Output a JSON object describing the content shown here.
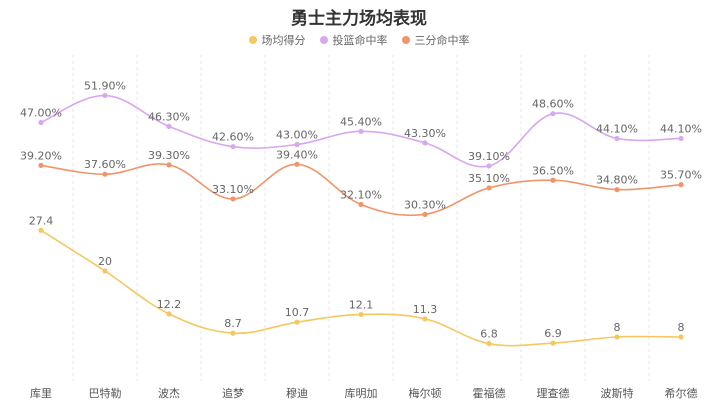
{
  "chart_data": {
    "type": "line",
    "title": "勇士主力场均表现",
    "xlabel": "",
    "ylabel": "",
    "ylim": [
      0,
      60
    ],
    "grid": "vertical-dashed",
    "legend_position": "top-center",
    "categories": [
      "库里",
      "巴特勒",
      "波杰",
      "追梦",
      "穆迪",
      "库明加",
      "梅尔顿",
      "霍福德",
      "理查德",
      "波斯特",
      "希尔德"
    ],
    "series": [
      {
        "name": "场均得分",
        "color": "#f5c85f",
        "values": [
          27.4,
          20,
          12.2,
          8.7,
          10.7,
          12.1,
          11.3,
          6.8,
          6.9,
          8,
          8
        ],
        "labels": [
          "27.4",
          "20",
          "12.2",
          "8.7",
          "10.7",
          "12.1",
          "11.3",
          "6.8",
          "6.9",
          "8",
          "8"
        ]
      },
      {
        "name": "投篮命中率",
        "color": "#d9a6f0",
        "values": [
          47.0,
          51.9,
          46.3,
          42.6,
          43.0,
          45.4,
          43.3,
          39.1,
          48.6,
          44.1,
          44.1
        ],
        "labels": [
          "47.00%",
          "51.90%",
          "46.30%",
          "42.60%",
          "43.00%",
          "45.40%",
          "43.30%",
          "39.10%",
          "48.60%",
          "44.10%",
          "44.10%"
        ]
      },
      {
        "name": "三分命中率",
        "color": "#f0956a",
        "values": [
          39.2,
          37.6,
          39.3,
          33.1,
          39.4,
          32.1,
          30.3,
          35.1,
          36.5,
          34.8,
          35.7
        ],
        "labels": [
          "39.20%",
          "37.60%",
          "39.30%",
          "33.10%",
          "39.40%",
          "32.10%",
          "30.30%",
          "35.10%",
          "36.50%",
          "34.80%",
          "35.70%"
        ]
      }
    ]
  }
}
